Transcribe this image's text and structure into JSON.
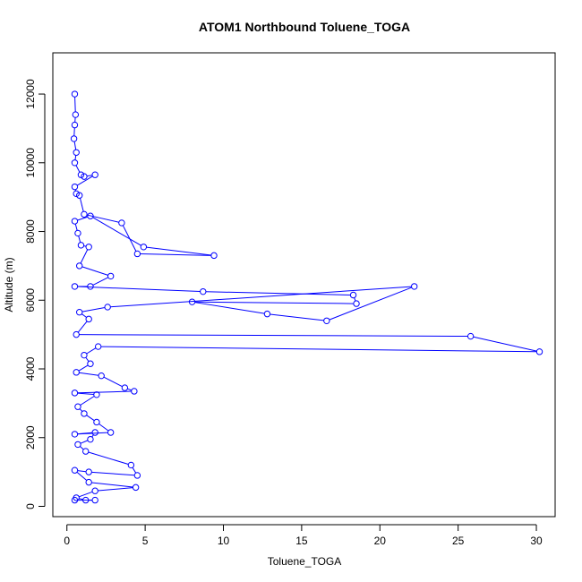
{
  "chart_data": {
    "type": "line",
    "title": "ATOM1 Northbound Toluene_TOGA",
    "xlabel": "Toluene_TOGA",
    "ylabel": "Altitude (m)",
    "xlim": [
      -0.9,
      31.2
    ],
    "ylim": [
      -300,
      13200
    ],
    "x_ticks": [
      0,
      5,
      10,
      15,
      20,
      25,
      30
    ],
    "y_ticks": [
      0,
      2000,
      4000,
      6000,
      8000,
      10000,
      12000
    ],
    "grid": false,
    "series": [
      {
        "name": "Toluene_TOGA",
        "color": "#0000ff",
        "marker": "open-circle",
        "points": [
          [
            0.5,
            12000
          ],
          [
            0.55,
            11400
          ],
          [
            0.5,
            11100
          ],
          [
            0.45,
            10700
          ],
          [
            0.6,
            10300
          ],
          [
            0.5,
            10000
          ],
          [
            0.9,
            9650
          ],
          [
            1.1,
            9600
          ],
          [
            1.8,
            9650
          ],
          [
            0.5,
            9300
          ],
          [
            0.6,
            9100
          ],
          [
            0.8,
            9050
          ],
          [
            1.1,
            8500
          ],
          [
            3.5,
            8250
          ],
          [
            4.5,
            7350
          ],
          [
            9.4,
            7300
          ],
          [
            4.9,
            7550
          ],
          [
            1.5,
            8450
          ],
          [
            0.5,
            8300
          ],
          [
            0.7,
            7950
          ],
          [
            0.9,
            7600
          ],
          [
            1.4,
            7550
          ],
          [
            0.8,
            7000
          ],
          [
            2.8,
            6700
          ],
          [
            1.5,
            6400
          ],
          [
            0.5,
            6400
          ],
          [
            8.7,
            6250
          ],
          [
            18.3,
            6150
          ],
          [
            18.5,
            5900
          ],
          [
            8.0,
            5950
          ],
          [
            12.8,
            5600
          ],
          [
            16.6,
            5400
          ],
          [
            22.2,
            6400
          ],
          [
            2.6,
            5800
          ],
          [
            0.8,
            5650
          ],
          [
            1.4,
            5450
          ],
          [
            0.6,
            5000
          ],
          [
            25.8,
            4950
          ],
          [
            30.2,
            4500
          ],
          [
            2.0,
            4650
          ],
          [
            1.1,
            4400
          ],
          [
            1.5,
            4150
          ],
          [
            0.6,
            3900
          ],
          [
            2.2,
            3800
          ],
          [
            3.7,
            3450
          ],
          [
            4.3,
            3350
          ],
          [
            0.5,
            3300
          ],
          [
            1.9,
            3250
          ],
          [
            0.7,
            2900
          ],
          [
            1.1,
            2700
          ],
          [
            1.9,
            2450
          ],
          [
            2.8,
            2150
          ],
          [
            0.5,
            2100
          ],
          [
            1.8,
            2150
          ],
          [
            1.5,
            1950
          ],
          [
            0.7,
            1800
          ],
          [
            1.2,
            1600
          ],
          [
            4.1,
            1200
          ],
          [
            4.5,
            900
          ],
          [
            1.4,
            1000
          ],
          [
            0.5,
            1050
          ],
          [
            1.4,
            700
          ],
          [
            4.4,
            550
          ],
          [
            1.8,
            450
          ],
          [
            0.6,
            250
          ],
          [
            1.2,
            180
          ],
          [
            1.8,
            180
          ],
          [
            0.5,
            180
          ]
        ]
      }
    ]
  }
}
